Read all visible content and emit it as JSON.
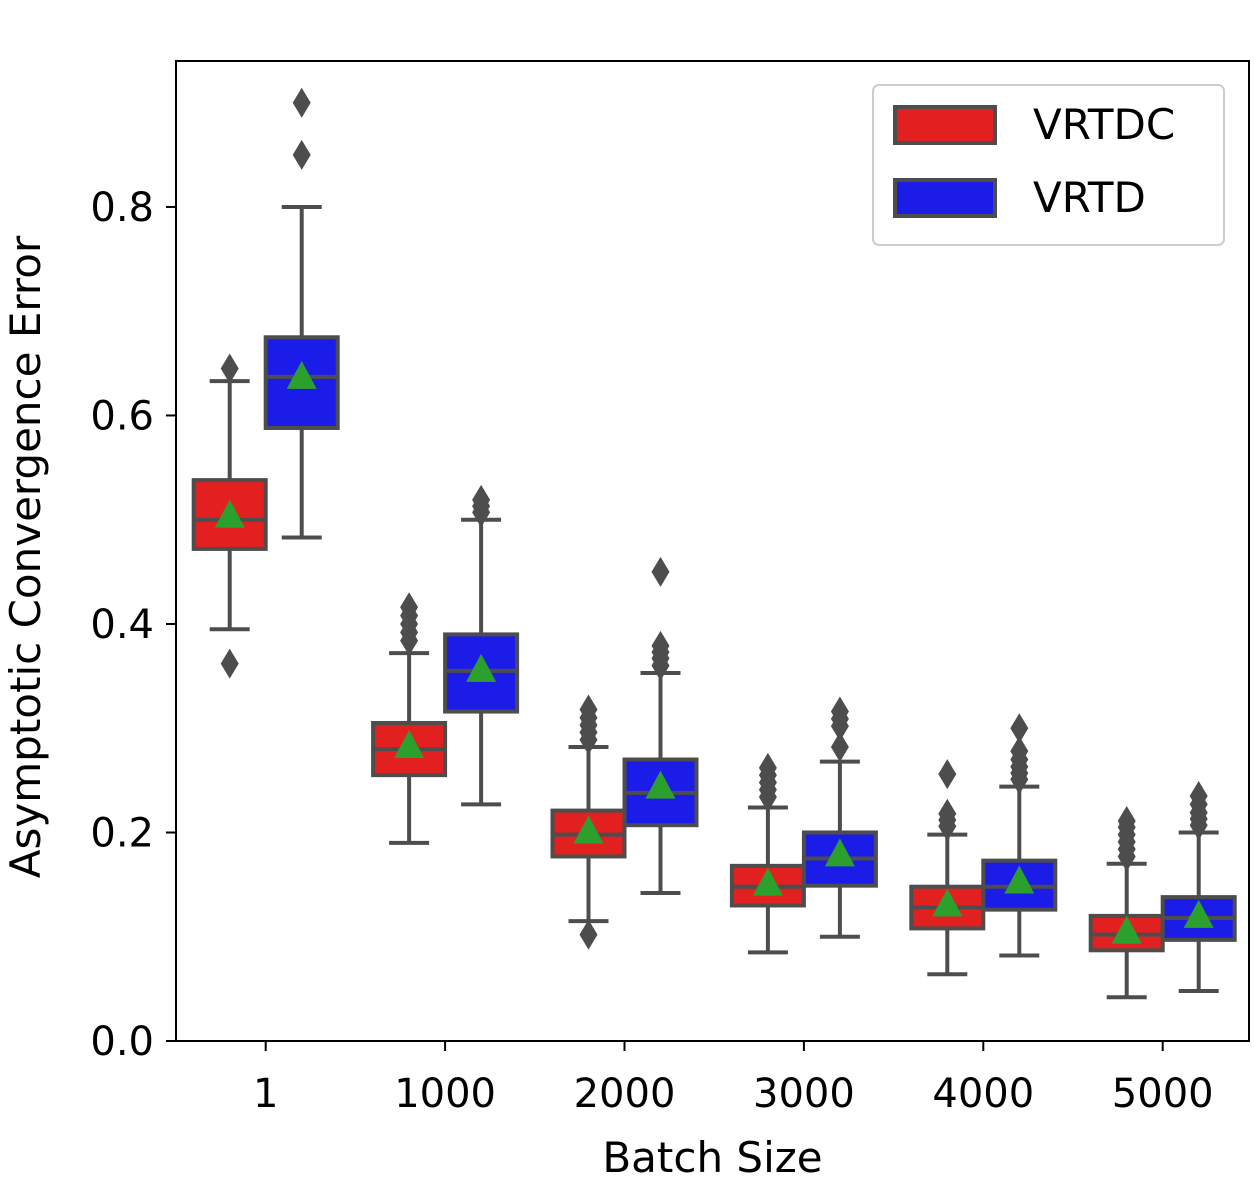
{
  "chart_data": {
    "type": "boxplot",
    "title": "",
    "xlabel": "Batch Size",
    "ylabel": "Asymptotic Convergence Error",
    "ylim": [
      0.0,
      0.94
    ],
    "yticks": [
      0.0,
      0.2,
      0.4,
      0.6,
      0.8
    ],
    "y_tick_labels": [
      "0.0",
      "0.2",
      "0.4",
      "0.6",
      "0.8"
    ],
    "categories": [
      "1",
      "1000",
      "2000",
      "3000",
      "4000",
      "5000"
    ],
    "grid": false,
    "legend_position": "top-right",
    "mean_marker": "triangle",
    "mean_color": "#2ca02c",
    "series": [
      {
        "name": "VRTDC",
        "color": "#e32020",
        "stats": [
          {
            "whislo": 0.395,
            "q1": 0.472,
            "med": 0.5,
            "q3": 0.538,
            "whishi": 0.633,
            "mean": 0.503,
            "fliers": [
              0.645,
              0.362
            ]
          },
          {
            "whislo": 0.19,
            "q1": 0.255,
            "med": 0.28,
            "q3": 0.305,
            "whishi": 0.372,
            "mean": 0.282,
            "fliers": [
              0.384,
              0.392,
              0.4,
              0.408,
              0.416
            ]
          },
          {
            "whislo": 0.115,
            "q1": 0.177,
            "med": 0.198,
            "q3": 0.221,
            "whishi": 0.282,
            "mean": 0.2,
            "fliers": [
              0.289,
              0.296,
              0.303,
              0.31,
              0.318,
              0.102
            ]
          },
          {
            "whislo": 0.085,
            "q1": 0.13,
            "med": 0.148,
            "q3": 0.168,
            "whishi": 0.224,
            "mean": 0.15,
            "fliers": [
              0.234,
              0.241,
              0.248,
              0.255,
              0.262
            ]
          },
          {
            "whislo": 0.064,
            "q1": 0.108,
            "med": 0.128,
            "q3": 0.148,
            "whishi": 0.198,
            "mean": 0.13,
            "fliers": [
              0.206,
              0.212,
              0.218,
              0.256
            ]
          },
          {
            "whislo": 0.042,
            "q1": 0.087,
            "med": 0.102,
            "q3": 0.12,
            "whishi": 0.17,
            "mean": 0.104,
            "fliers": [
              0.177,
              0.184,
              0.191,
              0.198,
              0.205,
              0.211
            ]
          }
        ]
      },
      {
        "name": "VRTD",
        "color": "#1c1ce8",
        "stats": [
          {
            "whislo": 0.483,
            "q1": 0.588,
            "med": 0.637,
            "q3": 0.675,
            "whishi": 0.8,
            "mean": 0.636,
            "fliers": [
              0.85,
              0.9
            ]
          },
          {
            "whislo": 0.227,
            "q1": 0.316,
            "med": 0.355,
            "q3": 0.39,
            "whishi": 0.5,
            "mean": 0.355,
            "fliers": [
              0.507,
              0.513,
              0.519
            ]
          },
          {
            "whislo": 0.142,
            "q1": 0.207,
            "med": 0.238,
            "q3": 0.27,
            "whishi": 0.353,
            "mean": 0.243,
            "fliers": [
              0.36,
              0.367,
              0.373,
              0.379,
              0.45
            ]
          },
          {
            "whislo": 0.1,
            "q1": 0.149,
            "med": 0.175,
            "q3": 0.2,
            "whishi": 0.268,
            "mean": 0.178,
            "fliers": [
              0.282,
              0.302,
              0.309,
              0.316
            ]
          },
          {
            "whislo": 0.082,
            "q1": 0.126,
            "med": 0.148,
            "q3": 0.173,
            "whishi": 0.244,
            "mean": 0.152,
            "fliers": [
              0.251,
              0.257,
              0.263,
              0.27,
              0.278,
              0.3
            ]
          },
          {
            "whislo": 0.048,
            "q1": 0.097,
            "med": 0.118,
            "q3": 0.138,
            "whishi": 0.2,
            "mean": 0.119,
            "fliers": [
              0.207,
              0.213,
              0.219,
              0.227,
              0.235
            ]
          }
        ]
      }
    ]
  }
}
